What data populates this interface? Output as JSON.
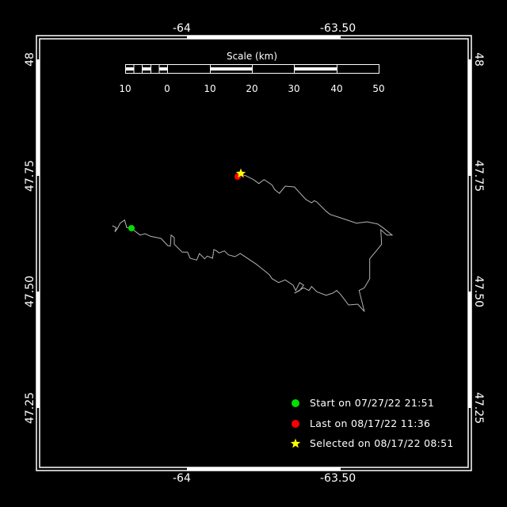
{
  "map": {
    "lon_labels": [
      "-64",
      "-63.50"
    ],
    "lat_labels": [
      "48",
      "47.75",
      "47.50",
      "47.25"
    ],
    "colors": {
      "background": "#000000",
      "frame": "#ffffff",
      "track": "#b4b4b4",
      "start": "#00e000",
      "last": "#ff0000",
      "selected": "#ffff00"
    }
  },
  "scale": {
    "title": "Scale (km)",
    "ticks": [
      "10",
      "0",
      "10",
      "20",
      "30",
      "40",
      "50"
    ]
  },
  "legend": {
    "start": {
      "label": "Start on 07/27/22 21:51",
      "icon": "green-circle-icon"
    },
    "last": {
      "label": "Last on 08/17/22 11:36",
      "icon": "red-circle-icon"
    },
    "selected": {
      "label": "Selected on 08/17/22 08:51",
      "icon": "yellow-star-icon"
    }
  }
}
